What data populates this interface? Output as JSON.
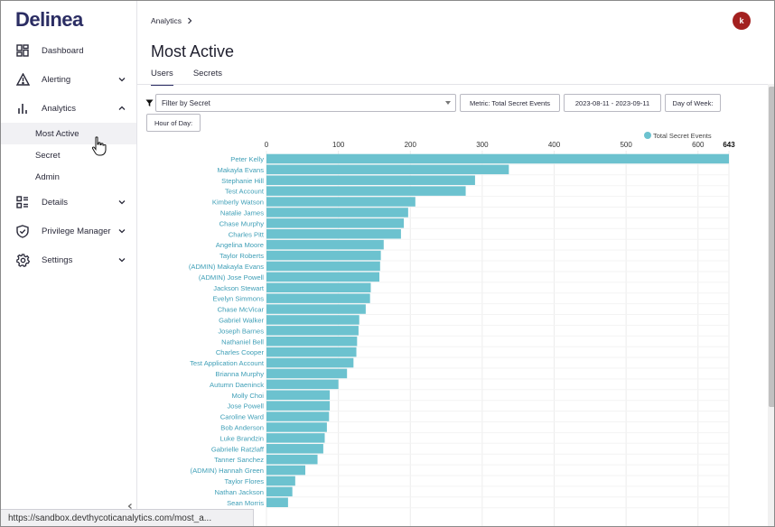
{
  "brand": {
    "logo": "Delinea",
    "accent": "#2b2d63"
  },
  "sidebar": {
    "items": [
      {
        "label": "Dashboard",
        "icon": "dashboard-icon"
      },
      {
        "label": "Alerting",
        "icon": "warning-icon"
      },
      {
        "label": "Analytics",
        "icon": "bar-chart-icon"
      },
      {
        "label": "Details",
        "icon": "details-icon"
      },
      {
        "label": "Privilege Manager",
        "icon": "shield-check-icon"
      },
      {
        "label": "Settings",
        "icon": "gear-icon"
      }
    ],
    "analytics_sub": [
      {
        "label": "Most Active"
      },
      {
        "label": "Secret"
      },
      {
        "label": "Admin"
      }
    ]
  },
  "header": {
    "breadcrumb": "Analytics",
    "avatar_initial": "k",
    "title": "Most Active"
  },
  "tabs": [
    {
      "label": "Users"
    },
    {
      "label": "Secrets"
    }
  ],
  "filters": {
    "filter_placeholder": "Filter by Secret",
    "metric": "Metric: Total Secret Events",
    "date_range": "2023-08-11 - 2023-09-11",
    "day_of_week": "Day of Week:",
    "hour_of_day": "Hour of Day:"
  },
  "status_url": "https://sandbox.devthycoticanalytics.com/most_a...",
  "chart_data": {
    "type": "bar",
    "orientation": "horizontal",
    "title": "",
    "legend": "Total Secret Events",
    "legend_position": "top-right",
    "color": "#6cc2cf",
    "xlim": [
      0,
      643
    ],
    "x_ticks": [
      0,
      100,
      200,
      300,
      400,
      500,
      600,
      643
    ],
    "categories": [
      "Peter Kelly",
      "Makayla Evans",
      "Stephanie Hill",
      "Test Account",
      "Kimberly Watson",
      "Natalie James",
      "Chase Murphy",
      "Charles Pitt",
      "Angelina Moore",
      "Taylor Roberts",
      "(ADMIN) Makayla Evans",
      "(ADMIN) Jose Powell",
      "Jackson Stewart",
      "Evelyn Simmons",
      "Chase McVicar",
      "Gabriel Walker",
      "Joseph Barnes",
      "Nathaniel Bell",
      "Charles Cooper",
      "Test Application Account",
      "Brianna Murphy",
      "Autumn Daeninck",
      "Molly Choi",
      "Jose Powell",
      "Caroline Ward",
      "Bob Anderson",
      "Luke Brandzin",
      "Gabrielle Ratzlaff",
      "Tanner Sanchez",
      "(ADMIN) Hannah Green",
      "Taylor Flores",
      "Nathan Jackson",
      "Sean Morris"
    ],
    "values": [
      643,
      337,
      290,
      277,
      207,
      197,
      191,
      187,
      163,
      159,
      158,
      157,
      145,
      144,
      138,
      129,
      128,
      126,
      125,
      121,
      112,
      100,
      88,
      88,
      87,
      84,
      81,
      79,
      71,
      54,
      40,
      36,
      30
    ]
  }
}
